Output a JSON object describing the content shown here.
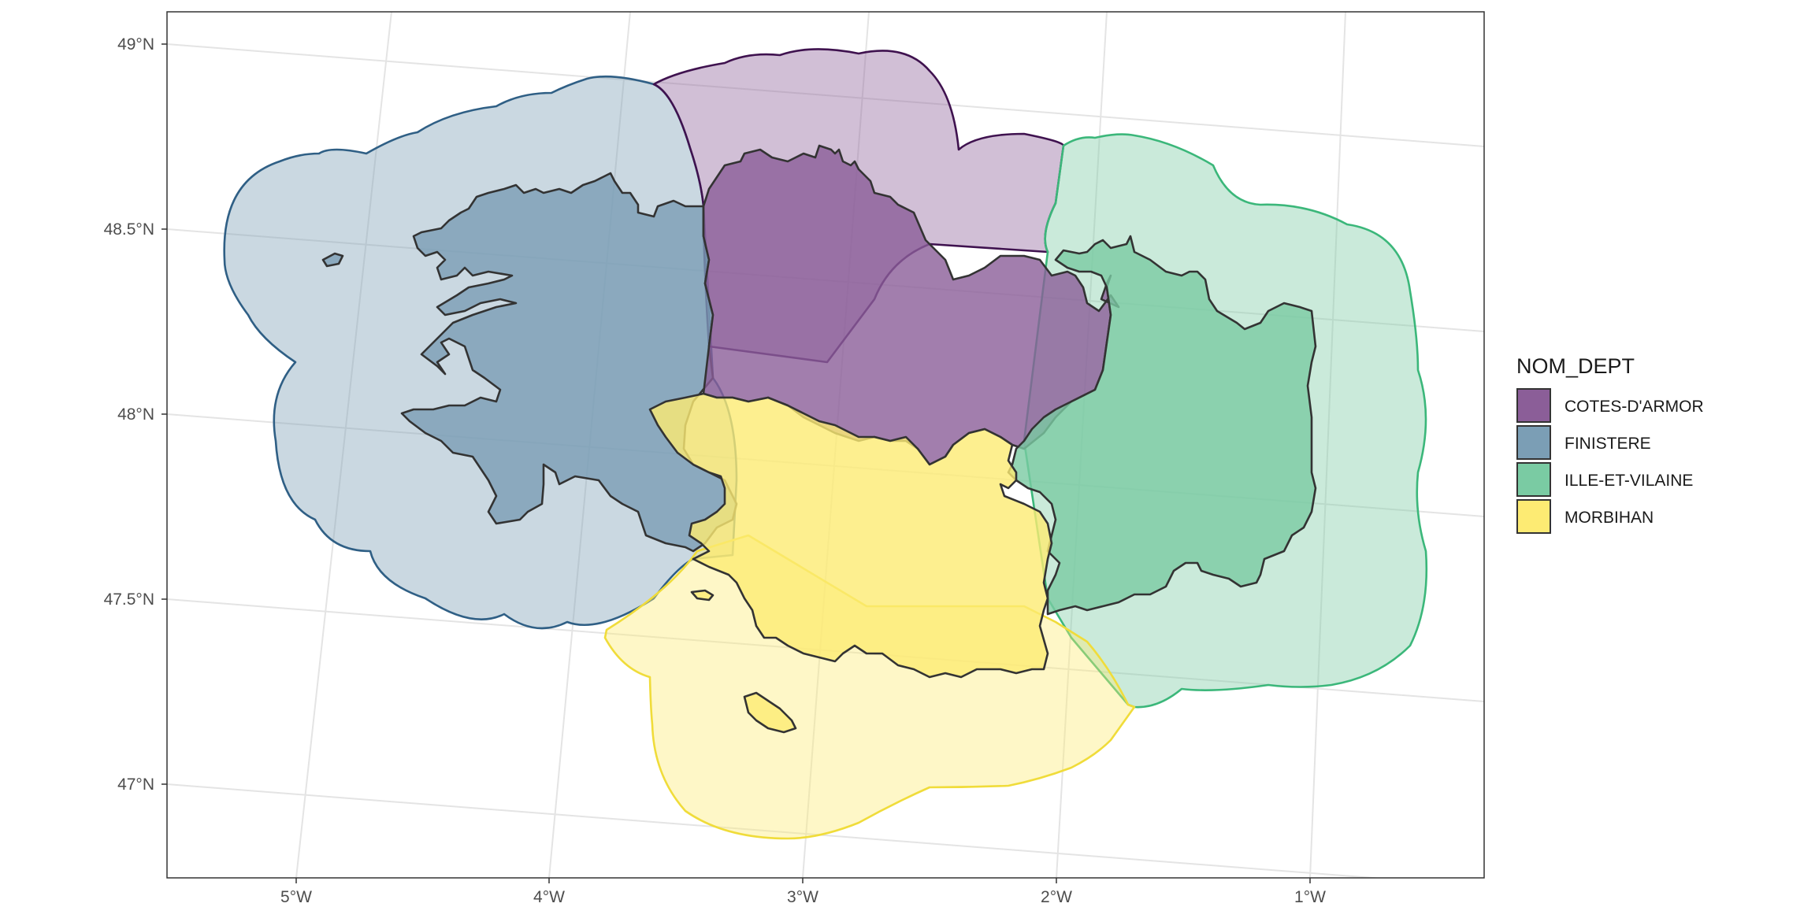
{
  "chart_data": {
    "type": "map",
    "description_note": "",
    "x_ticks": [
      "5°W",
      "4°W",
      "3°W",
      "2°W",
      "1°W"
    ],
    "y_ticks": [
      "49°N",
      "48.5°N",
      "48°N",
      "47.5°N",
      "47°N"
    ],
    "grid": true,
    "legend": {
      "title": "NOM_DEPT",
      "position": "right",
      "items": [
        {
          "label": "COTES-D'ARMOR",
          "color": "#8B5E98"
        },
        {
          "label": "FINISTERE",
          "color": "#7B9EB5"
        },
        {
          "label": "ILLE-ET-VILAINE",
          "color": "#7ACBA3"
        },
        {
          "label": "MORBIHAN",
          "color": "#FDEB73"
        }
      ]
    },
    "layers": [
      {
        "name": "buffer",
        "alpha": 0.4
      },
      {
        "name": "departments",
        "alpha": 0.8
      }
    ],
    "colors": {
      "cotes": {
        "fill": "#8B5E98",
        "line": "#3F124F"
      },
      "finistere": {
        "fill": "#7B9EB5",
        "line": "#2F5F85"
      },
      "ille": {
        "fill": "#7ACBA3",
        "line": "#3BB77A"
      },
      "morbihan": {
        "fill": "#FDEB73",
        "line": "#F0DC3A"
      }
    }
  }
}
